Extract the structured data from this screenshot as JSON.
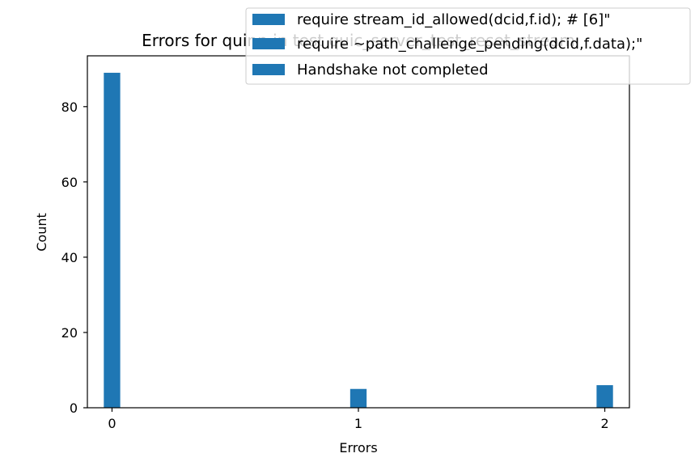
{
  "chart_data": {
    "type": "bar",
    "title": "Errors for quinn in test quic_server_test_reset_stream",
    "xlabel": "Errors",
    "ylabel": "Count",
    "x_ticks": [
      0,
      1,
      2
    ],
    "y_ticks": [
      0,
      20,
      40,
      60,
      80
    ],
    "xlim": [
      -0.1,
      2.1
    ],
    "ylim": [
      0,
      93.5
    ],
    "bar_color": "#1f77b4",
    "bar_width": 0.0667,
    "series": [
      {
        "name": "require stream_id_allowed(dcid,f.id);  # [6]\"",
        "x": [
          0
        ],
        "values": [
          89
        ]
      },
      {
        "name": "require ~path_challenge_pending(dcid,f.data);\"",
        "x": [
          1
        ],
        "values": [
          5
        ]
      },
      {
        "name": "Handshake not completed",
        "x": [
          2
        ],
        "values": [
          6
        ]
      }
    ],
    "legend_position": "top-right",
    "grid": false
  }
}
